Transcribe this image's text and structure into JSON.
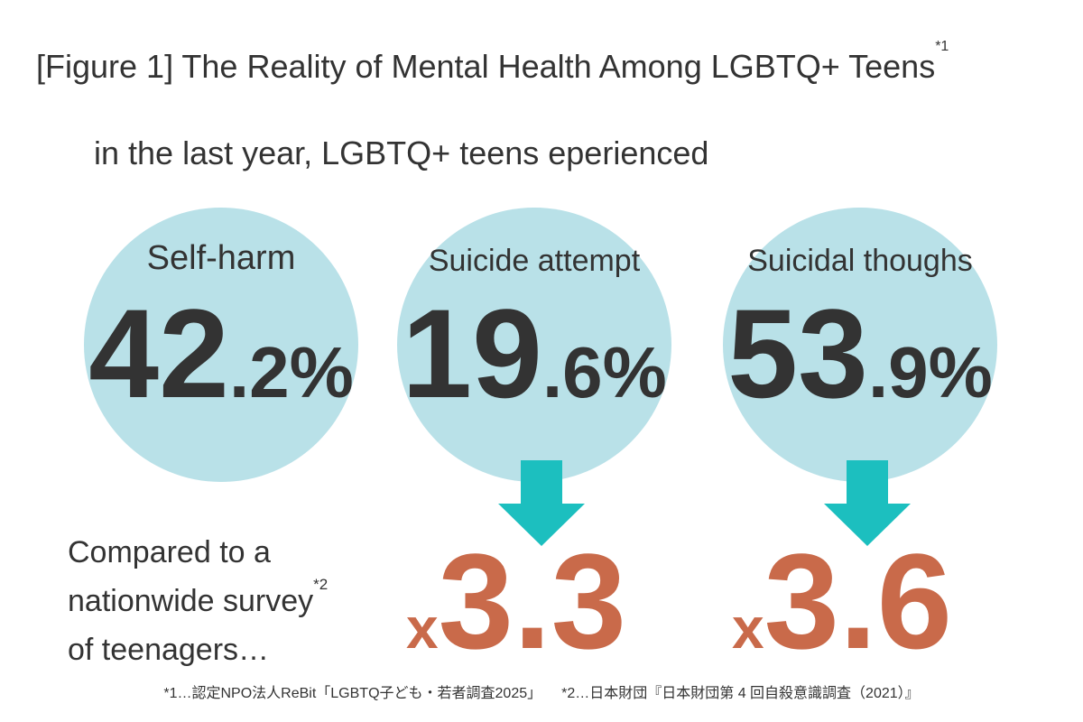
{
  "header": {
    "title": "[Figure 1] The Reality of Mental Health Among LGBTQ+ Teens",
    "title_note": "*1"
  },
  "subtitle": "in the last year, LGBTQ+ teens eperienced",
  "stats": [
    {
      "label": "Self-harm",
      "whole": "42",
      "fraction": ".2",
      "unit": "%"
    },
    {
      "label": "Suicide attempt",
      "whole": "19",
      "fraction": ".6",
      "unit": "%"
    },
    {
      "label": "Suicidal thoughs",
      "whole": "53",
      "fraction": ".9",
      "unit": "%"
    }
  ],
  "comparison": {
    "lines": [
      "Compared to a",
      "nationwide survey",
      "of teenagers…"
    ],
    "note": "*2"
  },
  "multipliers": [
    {
      "prefix": "x",
      "value": "3.3"
    },
    {
      "prefix": "x",
      "value": "3.6"
    }
  ],
  "footnotes": [
    "*1…認定NPO法人ReBit「LGBTQ子ども・若者調査2025」",
    "*2…日本財団『日本財団第 4 回自殺意識調査（2021）』"
  ]
}
